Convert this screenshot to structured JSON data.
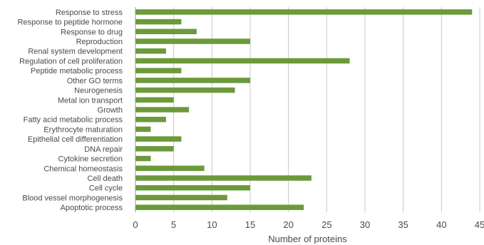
{
  "chart_data": {
    "type": "bar",
    "orientation": "horizontal",
    "categories": [
      "Response to stress",
      "Response to peptide hormone",
      "Response to drug",
      "Reproduction",
      "Renal system development",
      "Regulation of cell proliferation",
      "Peptide metabolic process",
      "Other GO terms",
      "Neurogenesis",
      "Metal ion transport",
      "Growth",
      "Fatty acid metabolic process",
      "Erythrocyte maturation",
      "Epithelial cell differentiation",
      "DNA repair",
      "Cytokine secretion",
      "Chemical homeostasis",
      "Cell death",
      "Cell cycle",
      "Blood vessel morphogenesis",
      "Apoptotic process"
    ],
    "values": [
      44,
      6,
      8,
      15,
      4,
      28,
      6,
      15,
      13,
      5,
      7,
      4,
      2,
      6,
      5,
      2,
      9,
      23,
      15,
      12,
      22
    ],
    "xlabel": "Number of proteins",
    "ylabel": "",
    "title": "",
    "xlim": [
      0,
      45
    ],
    "xticks": [
      "0",
      "5",
      "10",
      "15",
      "20",
      "25",
      "30",
      "35",
      "40",
      "45"
    ],
    "grid": "vertical",
    "legend": "none",
    "bar_color": "#6b9a3a",
    "grid_color": "#c8c8c8",
    "text_color": "#4a4a4a"
  }
}
